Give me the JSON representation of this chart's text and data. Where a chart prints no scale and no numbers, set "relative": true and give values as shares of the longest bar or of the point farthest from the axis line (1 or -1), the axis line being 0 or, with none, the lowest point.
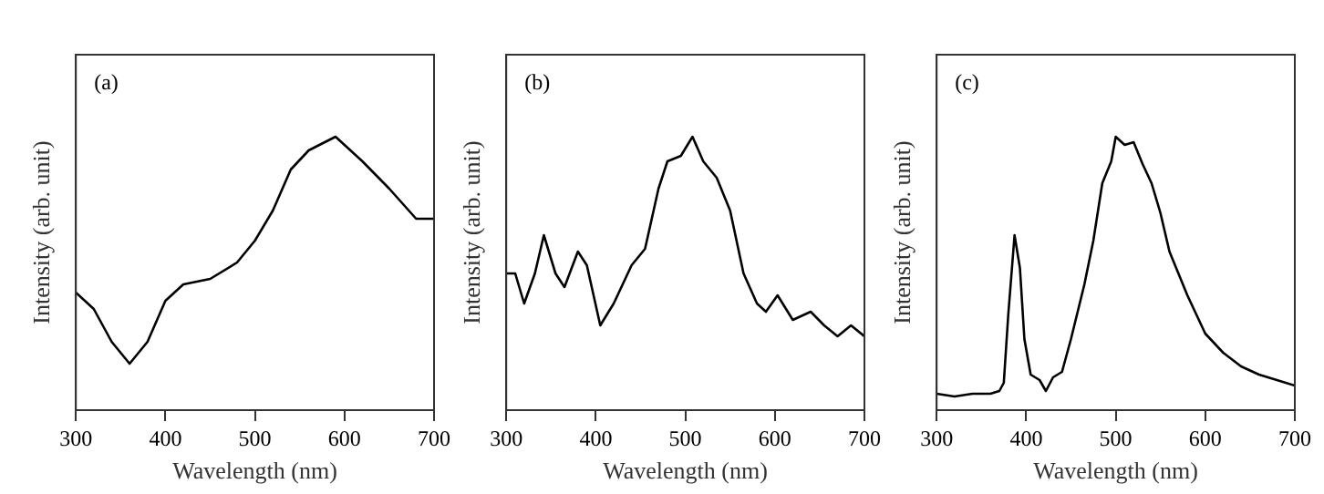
{
  "chart_data": [
    {
      "type": "line",
      "annotations": [
        "(a)"
      ],
      "xlabel": "Wavelength (nm)",
      "ylabel": "Intensity (arb. unit)",
      "relative": true,
      "xlim": [
        300,
        700
      ],
      "xticks": [
        300,
        400,
        500,
        600,
        700
      ],
      "grid": false,
      "legend": false,
      "marker": "none",
      "line_style": "solid",
      "tick_labels": "x",
      "series": [
        {
          "color": "#000000",
          "x": [
            300,
            320,
            340,
            360,
            380,
            400,
            420,
            450,
            480,
            500,
            520,
            540,
            560,
            590,
            620,
            650,
            680,
            700
          ],
          "values": [
            0.43,
            0.37,
            0.25,
            0.17,
            0.25,
            0.4,
            0.46,
            0.48,
            0.54,
            0.62,
            0.73,
            0.88,
            0.95,
            1,
            0.91,
            0.81,
            0.7,
            0.7
          ]
        }
      ]
    },
    {
      "type": "line",
      "annotations": [
        "(b)"
      ],
      "xlabel": "Wavelength (nm)",
      "ylabel": "Intensity (arb. unit)",
      "relative": true,
      "xlim": [
        300,
        700
      ],
      "xticks": [
        300,
        400,
        500,
        600,
        700
      ],
      "grid": false,
      "legend": false,
      "marker": "none",
      "line_style": "solid",
      "tick_labels": "x",
      "series": [
        {
          "color": "#000000",
          "x": [
            300,
            310,
            320,
            332,
            342,
            355,
            365,
            380,
            390,
            405,
            420,
            440,
            455,
            470,
            480,
            495,
            508,
            520,
            535,
            550,
            565,
            580,
            590,
            603,
            620,
            640,
            655,
            670,
            685,
            700
          ],
          "values": [
            0.5,
            0.5,
            0.39,
            0.5,
            0.64,
            0.5,
            0.45,
            0.58,
            0.53,
            0.31,
            0.39,
            0.53,
            0.59,
            0.81,
            0.91,
            0.93,
            1,
            0.91,
            0.85,
            0.73,
            0.5,
            0.39,
            0.36,
            0.42,
            0.33,
            0.36,
            0.31,
            0.27,
            0.31,
            0.27
          ]
        }
      ]
    },
    {
      "type": "line",
      "annotations": [
        "(c)"
      ],
      "xlabel": "Wavelength (nm)",
      "ylabel": "Intensity (arb. unit)",
      "relative": true,
      "xlim": [
        300,
        700
      ],
      "xticks": [
        300,
        400,
        500,
        600,
        700
      ],
      "grid": false,
      "legend": false,
      "marker": "none",
      "line_style": "solid",
      "tick_labels": "x",
      "series": [
        {
          "color": "#000000",
          "x": [
            300,
            320,
            340,
            360,
            370,
            375,
            380,
            387,
            393,
            398,
            405,
            415,
            422,
            430,
            440,
            450,
            465,
            475,
            485,
            495,
            500,
            510,
            520,
            530,
            540,
            550,
            560,
            570,
            580,
            590,
            600,
            620,
            640,
            660,
            680,
            700
          ],
          "values": [
            0.06,
            0.05,
            0.06,
            0.06,
            0.07,
            0.1,
            0.35,
            0.64,
            0.52,
            0.26,
            0.13,
            0.11,
            0.07,
            0.12,
            0.14,
            0.26,
            0.46,
            0.62,
            0.83,
            0.91,
            1,
            0.97,
            0.98,
            0.9,
            0.83,
            0.72,
            0.58,
            0.5,
            0.42,
            0.35,
            0.28,
            0.21,
            0.16,
            0.13,
            0.11,
            0.09
          ]
        }
      ]
    }
  ]
}
